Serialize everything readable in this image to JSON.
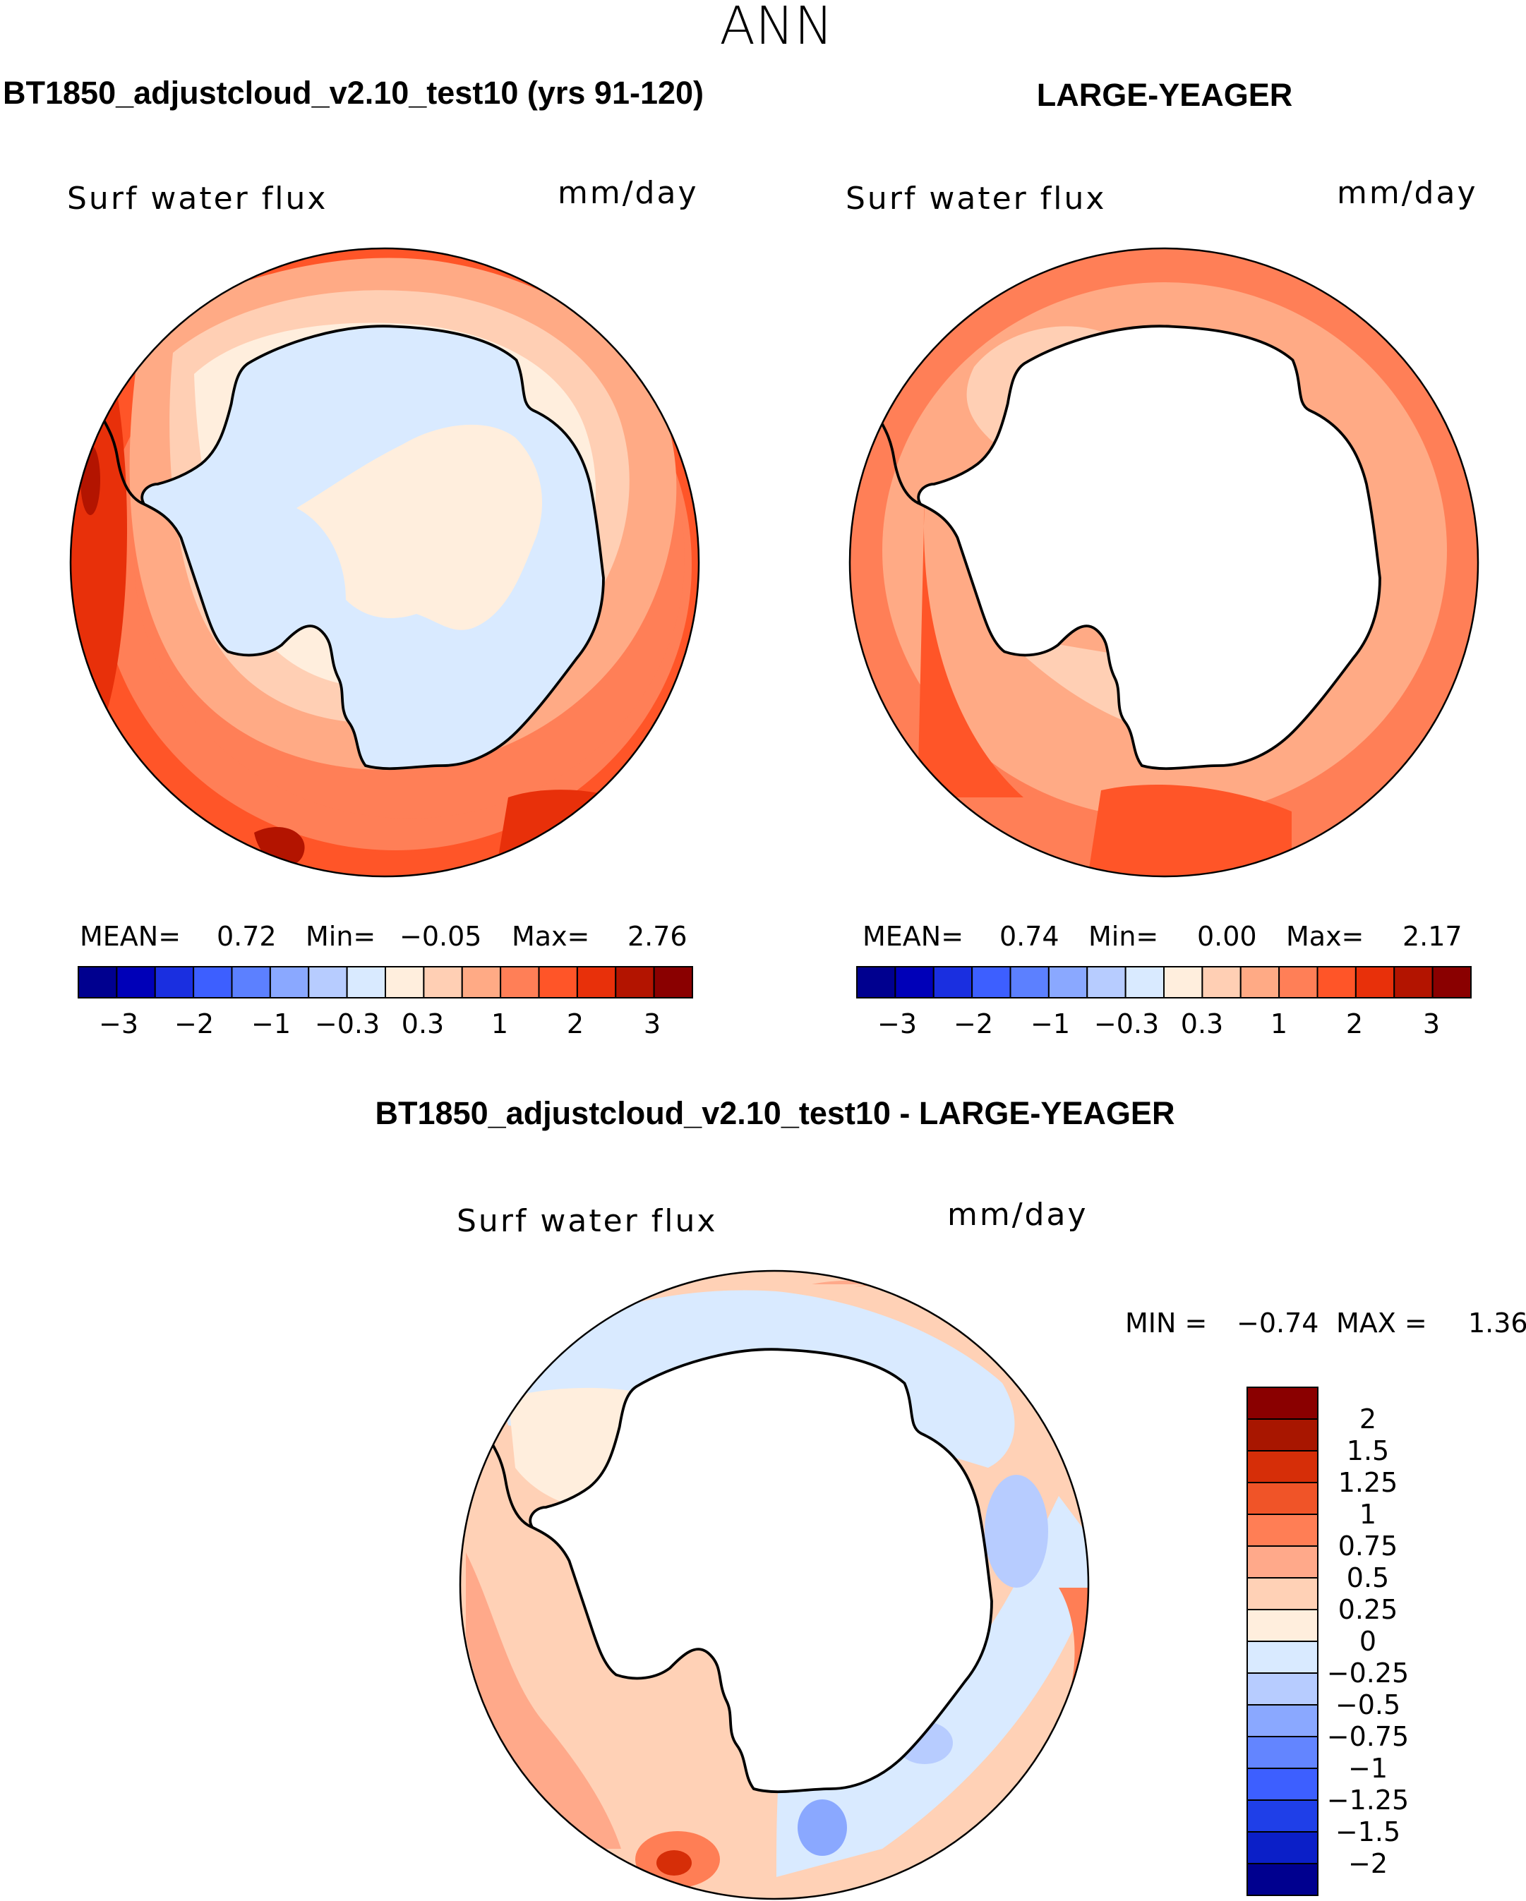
{
  "figure": {
    "season": "ANN",
    "colors": {
      "neg": [
        "#00008f",
        "#0000b8",
        "#1a2fe0",
        "#3d5fff",
        "#5c80ff",
        "#8aa8ff",
        "#b7ccff",
        "#d9eaff"
      ],
      "pos": [
        "#ffeedd",
        "#ffcfb4",
        "#ffaa85",
        "#ff7f57",
        "#ff5528",
        "#e8300a",
        "#b31400",
        "#8a0000"
      ],
      "diff_pos": [
        "#ffeedd",
        "#ffd1b6",
        "#ffa98a",
        "#ff7e55",
        "#f05428",
        "#d62e08",
        "#a81600",
        "#8a0000"
      ],
      "diff_neg": [
        "#d9eaff",
        "#b7ccff",
        "#8aa8ff",
        "#6385ff",
        "#3d5fff",
        "#1f3fe8",
        "#0b1fc8",
        "#00008f"
      ],
      "coast": "#000000",
      "land": "#ffffff"
    }
  },
  "panels": [
    {
      "title": "BT1850_adjustcloud_v2.10_test10 (yrs 91-120)",
      "variable": "Surf water flux",
      "units": "mm/day",
      "stats": {
        "mean_label": "MEAN=",
        "mean": "0.72",
        "min_label": "Min=",
        "min": "−0.05",
        "max_label": "Max=",
        "max": "2.76"
      },
      "colorbar_ticks": [
        "−3",
        "−2",
        "−1",
        "−0.3",
        "0.3",
        "1",
        "2",
        "3"
      ]
    },
    {
      "title": "LARGE-YEAGER",
      "variable": "Surf water flux",
      "units": "mm/day",
      "stats": {
        "mean_label": "MEAN=",
        "mean": "0.74",
        "min_label": "Min=",
        "min": "0.00",
        "max_label": "Max=",
        "max": "2.17"
      },
      "colorbar_ticks": [
        "−3",
        "−2",
        "−1",
        "−0.3",
        "0.3",
        "1",
        "2",
        "3"
      ]
    },
    {
      "title": "BT1850_adjustcloud_v2.10_test10 - LARGE-YEAGER",
      "variable": "Surf water flux",
      "units": "mm/day",
      "stats": {
        "min_label": "MIN =",
        "min": "−0.74",
        "max_label": "MAX =",
        "max": "1.36"
      },
      "colorbar_ticks": [
        "2",
        "1.5",
        "1.25",
        "1",
        "0.75",
        "0.5",
        "0.25",
        "0",
        "−0.25",
        "−0.5",
        "−0.75",
        "−1",
        "−1.25",
        "−1.5",
        "−2"
      ]
    }
  ]
}
